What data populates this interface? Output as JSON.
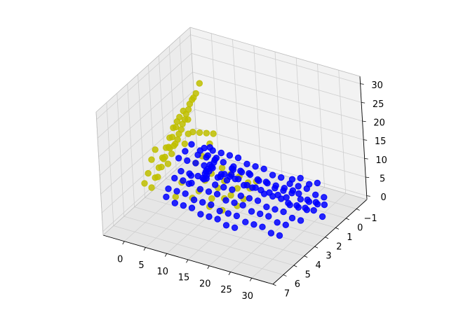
{
  "chart_data": {
    "type": "scatter",
    "projection": "3d",
    "title": "",
    "xlabel": "",
    "ylabel": "",
    "zlabel": "",
    "grid": true,
    "legend": "none",
    "xlim": [
      -5,
      35
    ],
    "ylim": [
      -2,
      7
    ],
    "zlim": [
      -1,
      32
    ],
    "x_ticks": [
      "0",
      "5",
      "10",
      "15",
      "20",
      "25",
      "30"
    ],
    "y_ticks": [
      "−1",
      "0",
      "1",
      "2",
      "3",
      "4",
      "5",
      "6",
      "7"
    ],
    "z_ticks": [
      "0",
      "5",
      "10",
      "15",
      "20",
      "25",
      "30"
    ],
    "x_tick_values": [
      0,
      5,
      10,
      15,
      20,
      25,
      30
    ],
    "y_tick_values": [
      -1,
      0,
      1,
      2,
      3,
      4,
      5,
      6,
      7
    ],
    "z_tick_values": [
      0,
      5,
      10,
      15,
      20,
      25,
      30
    ],
    "series": [
      {
        "color": "#bfbf00",
        "points": [
          [
            6,
            0,
            3
          ],
          [
            8,
            0,
            2
          ],
          [
            10,
            0,
            2
          ],
          [
            12,
            0,
            1
          ],
          [
            14,
            0,
            2
          ],
          [
            6,
            1,
            4
          ],
          [
            9,
            1,
            3
          ],
          [
            12,
            1,
            2
          ],
          [
            15,
            1,
            3
          ],
          [
            7,
            2,
            5
          ],
          [
            10,
            2,
            4
          ],
          [
            13,
            2,
            3
          ],
          [
            16,
            2,
            3
          ],
          [
            4,
            3,
            6
          ],
          [
            8,
            3,
            5
          ],
          [
            11,
            3,
            4
          ],
          [
            14,
            3,
            5
          ],
          [
            17,
            3,
            4
          ],
          [
            5,
            4,
            5
          ],
          [
            9,
            4,
            6
          ],
          [
            13,
            4,
            5
          ],
          [
            16,
            4,
            5
          ],
          [
            1,
            3,
            10
          ],
          [
            2,
            3,
            13
          ],
          [
            3,
            3,
            16
          ],
          [
            4,
            3,
            19
          ],
          [
            5,
            3,
            22
          ],
          [
            6,
            3,
            25
          ],
          [
            7,
            3,
            28
          ],
          [
            8,
            3,
            30
          ],
          [
            1,
            4,
            9
          ],
          [
            2,
            4,
            12
          ],
          [
            3,
            4,
            15
          ],
          [
            4,
            4,
            18
          ],
          [
            5,
            4,
            21
          ],
          [
            6,
            4,
            24
          ],
          [
            7,
            4,
            27
          ],
          [
            8,
            4,
            29
          ],
          [
            2,
            5,
            9
          ],
          [
            3,
            5,
            12
          ],
          [
            4,
            5,
            15
          ],
          [
            5,
            5,
            18
          ],
          [
            6,
            5,
            21
          ],
          [
            7,
            5,
            24
          ],
          [
            8,
            5,
            27
          ],
          [
            9,
            5,
            29
          ],
          [
            0,
            3,
            11
          ],
          [
            1,
            2,
            14
          ],
          [
            2,
            2,
            17
          ],
          [
            3,
            2,
            20
          ],
          [
            4,
            2,
            23
          ],
          [
            5,
            2,
            26
          ],
          [
            6,
            2,
            28
          ],
          [
            7,
            2,
            31
          ],
          [
            9,
            4,
            27
          ],
          [
            10,
            4,
            24
          ],
          [
            9,
            3,
            21
          ],
          [
            8,
            2,
            18
          ],
          [
            7,
            1,
            15
          ],
          [
            6,
            1,
            12
          ],
          [
            5,
            2,
            9
          ],
          [
            4,
            1,
            8
          ],
          [
            0,
            1,
            10
          ],
          [
            0,
            2,
            12
          ],
          [
            1,
            1,
            13
          ],
          [
            -1,
            2,
            11
          ],
          [
            3,
            6,
            13
          ],
          [
            4,
            6,
            16
          ],
          [
            5,
            6,
            20
          ],
          [
            6,
            6,
            23
          ]
        ]
      },
      {
        "color": "#0000ff",
        "points": [
          [
            2,
            0,
            7
          ],
          [
            4,
            0,
            7
          ],
          [
            6,
            0,
            7
          ],
          [
            8,
            0,
            7
          ],
          [
            10,
            0,
            7
          ],
          [
            12,
            0,
            6
          ],
          [
            14,
            0,
            6
          ],
          [
            16,
            0,
            6
          ],
          [
            18,
            0,
            5
          ],
          [
            20,
            0,
            5
          ],
          [
            22,
            0,
            4
          ],
          [
            24,
            0,
            4
          ],
          [
            26,
            0,
            4
          ],
          [
            28,
            0,
            3
          ],
          [
            30,
            0,
            3
          ],
          [
            3,
            1,
            8
          ],
          [
            5,
            1,
            8
          ],
          [
            7,
            1,
            8
          ],
          [
            9,
            1,
            8
          ],
          [
            11,
            1,
            7
          ],
          [
            13,
            1,
            7
          ],
          [
            15,
            1,
            7
          ],
          [
            17,
            1,
            6
          ],
          [
            19,
            1,
            6
          ],
          [
            21,
            1,
            5
          ],
          [
            23,
            1,
            5
          ],
          [
            25,
            1,
            5
          ],
          [
            27,
            1,
            4
          ],
          [
            29,
            1,
            4
          ],
          [
            31,
            1,
            4
          ],
          [
            3,
            2,
            9
          ],
          [
            5,
            2,
            9
          ],
          [
            7,
            2,
            9
          ],
          [
            9,
            2,
            9
          ],
          [
            11,
            2,
            8
          ],
          [
            13,
            2,
            8
          ],
          [
            15,
            2,
            8
          ],
          [
            17,
            2,
            7
          ],
          [
            19,
            2,
            7
          ],
          [
            21,
            2,
            6
          ],
          [
            23,
            2,
            6
          ],
          [
            25,
            2,
            6
          ],
          [
            27,
            2,
            5
          ],
          [
            29,
            2,
            5
          ],
          [
            31,
            2,
            5
          ],
          [
            4,
            3,
            9
          ],
          [
            6,
            3,
            9
          ],
          [
            8,
            3,
            9
          ],
          [
            10,
            3,
            9
          ],
          [
            12,
            3,
            8
          ],
          [
            14,
            3,
            8
          ],
          [
            16,
            3,
            8
          ],
          [
            18,
            3,
            7
          ],
          [
            20,
            3,
            7
          ],
          [
            22,
            3,
            7
          ],
          [
            24,
            3,
            6
          ],
          [
            26,
            3,
            6
          ],
          [
            28,
            3,
            6
          ],
          [
            30,
            3,
            5
          ],
          [
            32,
            3,
            5
          ],
          [
            5,
            4,
            10
          ],
          [
            7,
            4,
            10
          ],
          [
            9,
            4,
            10
          ],
          [
            11,
            4,
            9
          ],
          [
            13,
            4,
            9
          ],
          [
            15,
            4,
            9
          ],
          [
            17,
            4,
            8
          ],
          [
            19,
            4,
            8
          ],
          [
            21,
            4,
            8
          ],
          [
            23,
            4,
            7
          ],
          [
            25,
            4,
            7
          ],
          [
            27,
            4,
            7
          ],
          [
            29,
            4,
            6
          ],
          [
            31,
            4,
            6
          ],
          [
            6,
            5,
            10
          ],
          [
            8,
            5,
            10
          ],
          [
            10,
            5,
            10
          ],
          [
            12,
            5,
            9
          ],
          [
            14,
            5,
            9
          ],
          [
            16,
            5,
            9
          ],
          [
            18,
            5,
            8
          ],
          [
            20,
            5,
            8
          ],
          [
            22,
            5,
            8
          ],
          [
            24,
            5,
            7
          ],
          [
            26,
            5,
            7
          ],
          [
            28,
            5,
            7
          ],
          [
            30,
            5,
            6
          ],
          [
            32,
            5,
            6
          ],
          [
            8,
            6,
            11
          ],
          [
            10,
            6,
            10
          ],
          [
            12,
            6,
            10
          ],
          [
            14,
            6,
            10
          ],
          [
            16,
            6,
            9
          ],
          [
            18,
            6,
            9
          ],
          [
            20,
            6,
            9
          ],
          [
            22,
            6,
            8
          ],
          [
            24,
            6,
            8
          ],
          [
            10,
            2,
            12
          ],
          [
            11,
            3,
            13
          ],
          [
            12,
            3,
            14
          ],
          [
            13,
            4,
            15
          ],
          [
            14,
            4,
            16
          ],
          [
            15,
            5,
            17
          ],
          [
            16,
            5,
            18
          ],
          [
            17,
            6,
            19
          ],
          [
            18,
            6,
            20
          ],
          [
            18,
            5,
            17
          ],
          [
            17,
            4,
            15
          ],
          [
            16,
            4,
            14
          ],
          [
            6,
            1,
            11
          ],
          [
            8,
            2,
            12
          ],
          [
            10,
            3,
            11
          ],
          [
            12,
            4,
            12
          ],
          [
            14,
            2,
            11
          ],
          [
            16,
            3,
            12
          ],
          [
            9,
            4,
            12
          ],
          [
            11,
            5,
            13
          ],
          [
            6,
            -1,
            0
          ],
          [
            8,
            -1,
            0
          ],
          [
            10,
            -1,
            0
          ],
          [
            12,
            -1,
            -1
          ],
          [
            14,
            -1,
            -1
          ],
          [
            16,
            -1,
            -1
          ],
          [
            18,
            -1,
            -1
          ],
          [
            20,
            -1,
            -1
          ],
          [
            7,
            0,
            0
          ],
          [
            9,
            0,
            1
          ],
          [
            11,
            0,
            0
          ],
          [
            13,
            0,
            0
          ],
          [
            15,
            0,
            0
          ],
          [
            17,
            0,
            0
          ],
          [
            19,
            0,
            0
          ],
          [
            21,
            0,
            0
          ],
          [
            24,
            0,
            2
          ],
          [
            26,
            0,
            1
          ],
          [
            28,
            0,
            1
          ],
          [
            30,
            0,
            1
          ],
          [
            24,
            1,
            2
          ],
          [
            26,
            1,
            2
          ],
          [
            28,
            1,
            2
          ],
          [
            30,
            1,
            2
          ],
          [
            32,
            1,
            1
          ],
          [
            -1,
            0,
            7
          ],
          [
            0,
            1,
            8
          ],
          [
            1,
            0,
            6
          ],
          [
            1,
            2,
            9
          ],
          [
            20,
            -1,
            2
          ],
          [
            22,
            -1,
            3
          ],
          [
            24,
            -1,
            2
          ],
          [
            26,
            -1,
            3
          ]
        ]
      }
    ]
  }
}
